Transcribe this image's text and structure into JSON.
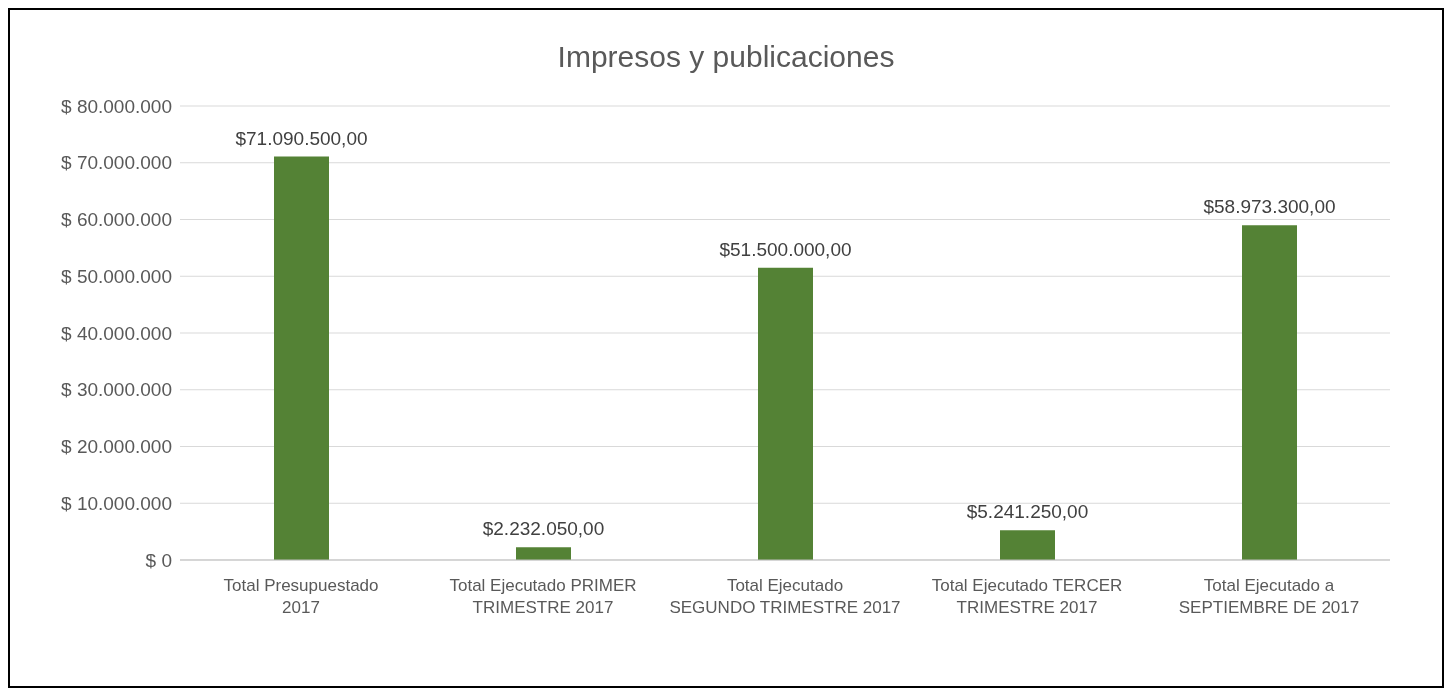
{
  "chart_data": {
    "type": "bar",
    "title": "Impresos y publicaciones",
    "categories": [
      "Total Presupuestado 2017",
      "Total Ejecutado PRIMER TRIMESTRE 2017",
      "Total Ejecutado SEGUNDO TRIMESTRE 2017",
      "Total Ejecutado TERCER TRIMESTRE 2017",
      "Total Ejecutado a SEPTIEMBRE DE 2017"
    ],
    "values": [
      71090500,
      2232050,
      51500000,
      5241250,
      58973300
    ],
    "value_labels": [
      "$71.090.500,00",
      "$2.232.050,00",
      "$51.500.000,00",
      "$5.241.250,00",
      "$58.973.300,00"
    ],
    "color": "#548235",
    "ylim": [
      0,
      80000000
    ],
    "yticks": [
      {
        "value": 0,
        "label": "$ 0"
      },
      {
        "value": 10000000,
        "label": "$ 10.000.000"
      },
      {
        "value": 20000000,
        "label": "$ 20.000.000"
      },
      {
        "value": 30000000,
        "label": "$ 30.000.000"
      },
      {
        "value": 40000000,
        "label": "$ 40.000.000"
      },
      {
        "value": 50000000,
        "label": "$ 50.000.000"
      },
      {
        "value": 60000000,
        "label": "$ 60.000.000"
      },
      {
        "value": 70000000,
        "label": "$ 70.000.000"
      },
      {
        "value": 80000000,
        "label": "$ 80.000.000"
      }
    ],
    "grid": "y",
    "legend": false
  }
}
